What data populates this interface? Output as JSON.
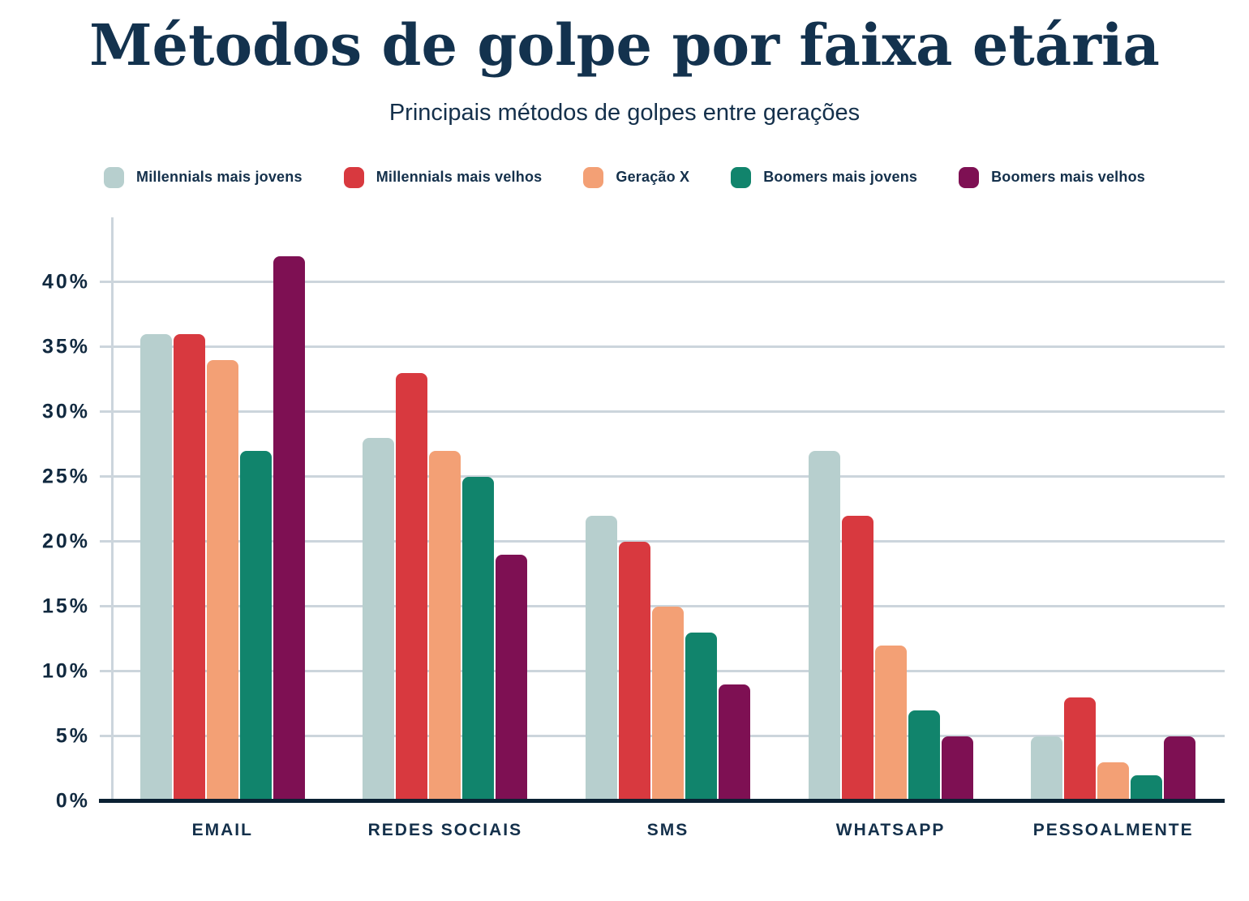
{
  "header": {
    "title": "Métodos de golpe por faixa etária",
    "subtitle": "Principais métodos de golpes entre gerações"
  },
  "colors": {
    "background": "#ffffff",
    "text": "#14304b",
    "gridline": "#ccd5dc",
    "axis_baseline": "#0b2133"
  },
  "chart_data": {
    "type": "bar",
    "title": "Métodos de golpe por faixa etária",
    "subtitle": "Principais métodos de golpes entre gerações",
    "categories": [
      "EMAIL",
      "REDES SOCIAIS",
      "SMS",
      "WHATSAPP",
      "PESSOALMENTE"
    ],
    "series": [
      {
        "name": "Millennials mais jovens",
        "color": "#b7cfce",
        "values": [
          36,
          28,
          22,
          27,
          5
        ]
      },
      {
        "name": "Millennials mais velhos",
        "color": "#d8393f",
        "values": [
          36,
          33,
          20,
          22,
          8
        ]
      },
      {
        "name": "Geração X",
        "color": "#f3a075",
        "values": [
          34,
          27,
          15,
          12,
          3
        ]
      },
      {
        "name": "Boomers mais jovens",
        "color": "#11846c",
        "values": [
          27,
          25,
          13,
          7,
          2
        ]
      },
      {
        "name": "Boomers mais velhos",
        "color": "#7e1053",
        "values": [
          42,
          19,
          9,
          5,
          5
        ]
      }
    ],
    "y_axis": {
      "unit": "%",
      "min": 0,
      "max": 45,
      "ticks": [
        {
          "label": "0%",
          "value": 0
        },
        {
          "label": "5%",
          "value": 5
        },
        {
          "label": "10%",
          "value": 10
        },
        {
          "label": "15%",
          "value": 15
        },
        {
          "label": "20%",
          "value": 20
        },
        {
          "label": "25%",
          "value": 25
        },
        {
          "label": "30%",
          "value": 30
        },
        {
          "label": "35%",
          "value": 35
        },
        {
          "label": "40%",
          "value": 40
        }
      ]
    },
    "xlabel": "",
    "ylabel": "",
    "grid": "horizontal",
    "legend_position": "top"
  }
}
